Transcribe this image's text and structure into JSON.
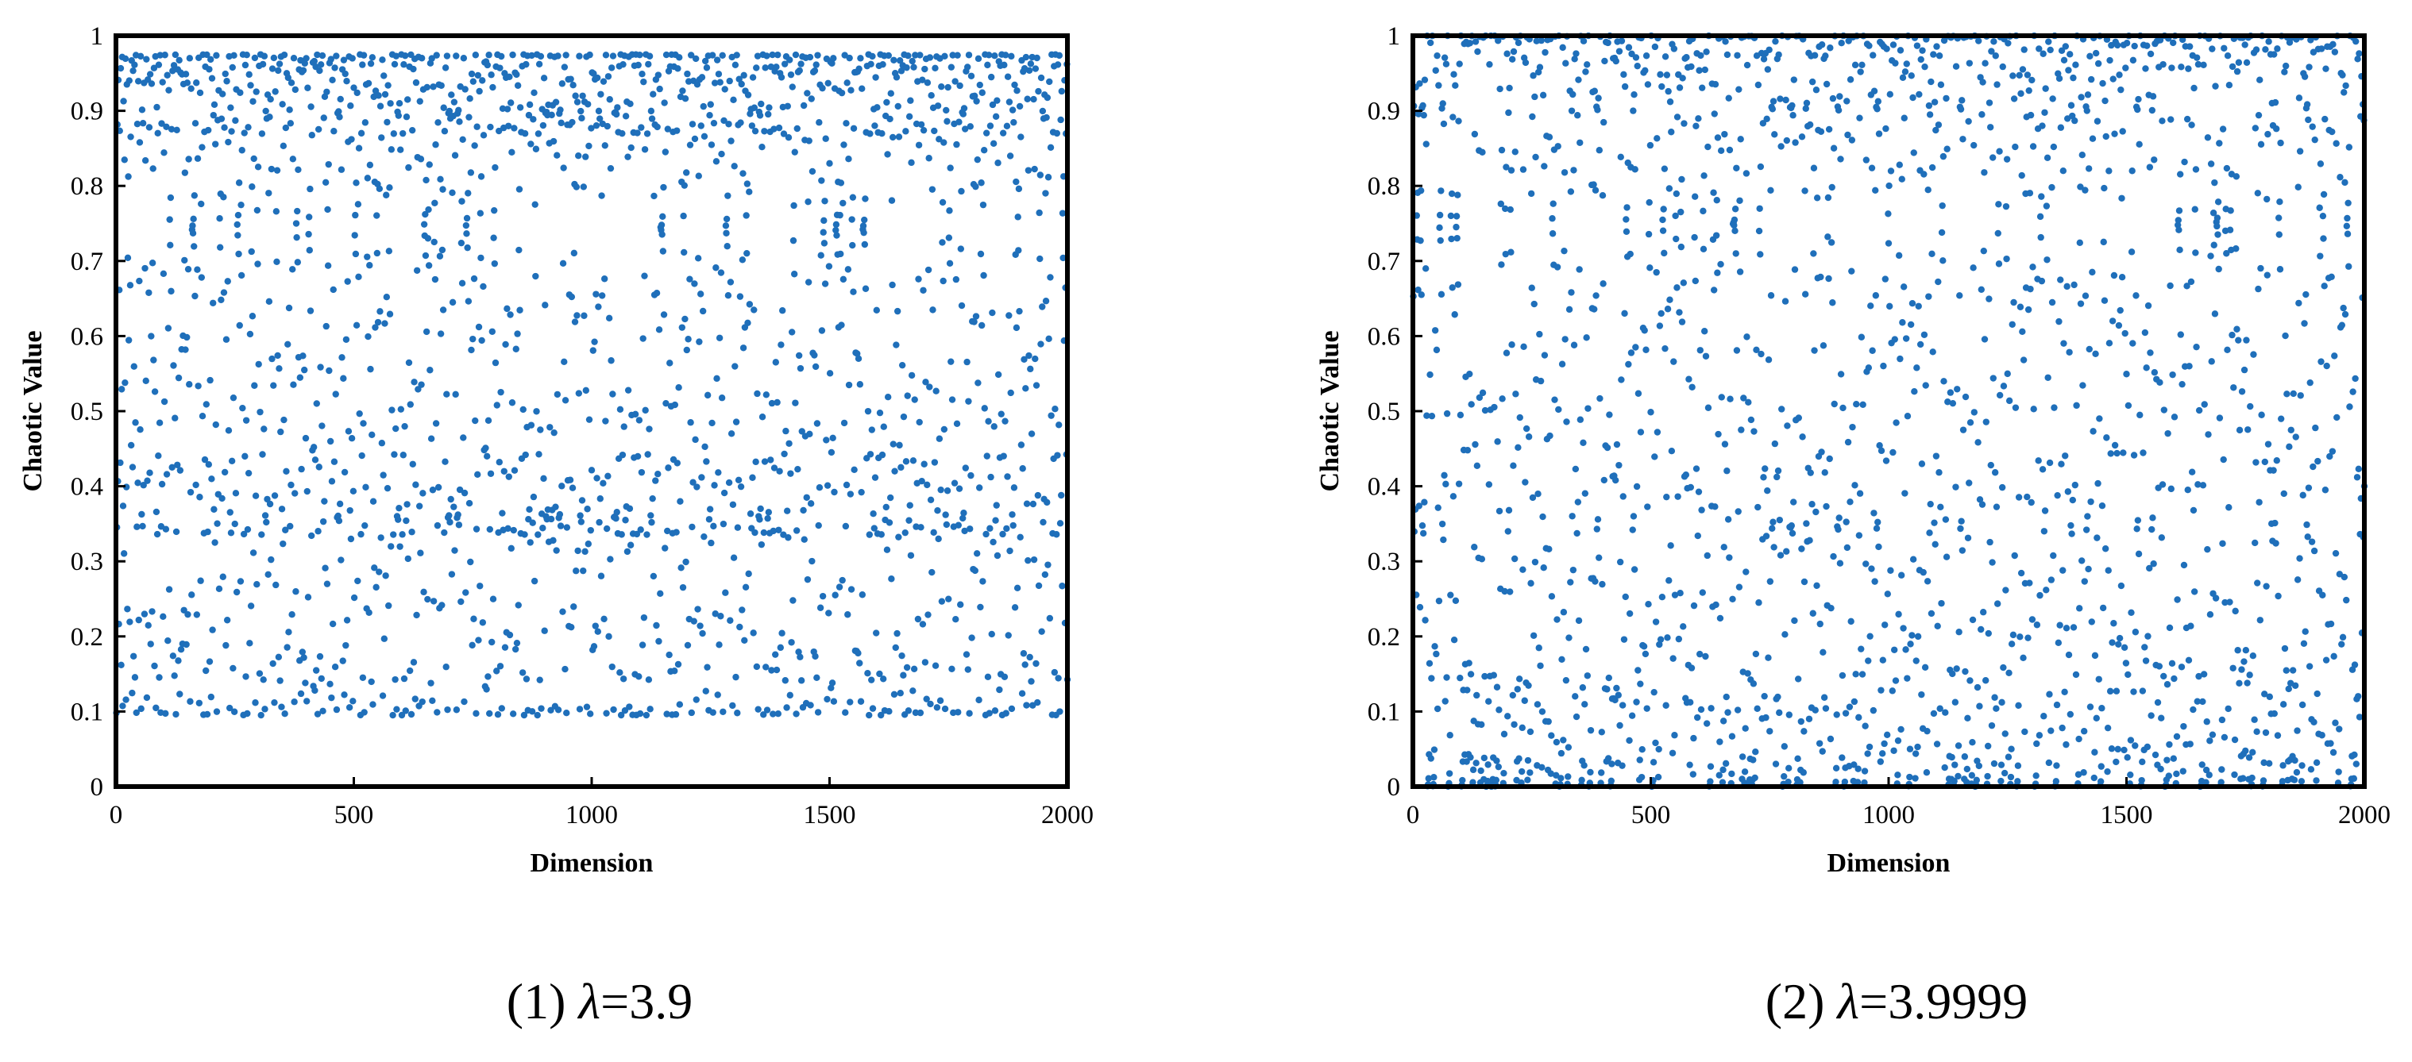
{
  "chart_data": [
    {
      "type": "scatter",
      "caption_prefix": "(1) ",
      "caption_symbol": "λ",
      "caption_value": "=3.9",
      "xlabel": "Dimension",
      "ylabel": "Chaotic Value",
      "xlim": [
        0,
        2000
      ],
      "ylim": [
        0,
        1
      ],
      "xticks": [
        "0",
        "500",
        "1000",
        "1500",
        "2000"
      ],
      "yticks": [
        "0",
        "0.1",
        "0.2",
        "0.3",
        "0.4",
        "0.5",
        "0.6",
        "0.7",
        "0.8",
        "0.9",
        "1"
      ],
      "grid": false,
      "n_points": 2000,
      "lambda": 3.9,
      "color": "#1f6fba"
    },
    {
      "type": "scatter",
      "caption_prefix": "(2) ",
      "caption_symbol": "λ",
      "caption_value": "=3.9999",
      "xlabel": "Dimension",
      "ylabel": "Chaotic Value",
      "xlim": [
        0,
        2000
      ],
      "ylim": [
        0,
        1
      ],
      "xticks": [
        "0",
        "500",
        "1000",
        "1500",
        "2000"
      ],
      "yticks": [
        "0",
        "0.1",
        "0.2",
        "0.3",
        "0.4",
        "0.5",
        "0.6",
        "0.7",
        "0.8",
        "0.9",
        "1"
      ],
      "grid": false,
      "n_points": 2000,
      "lambda": 3.9999,
      "color": "#1f6fba"
    }
  ]
}
